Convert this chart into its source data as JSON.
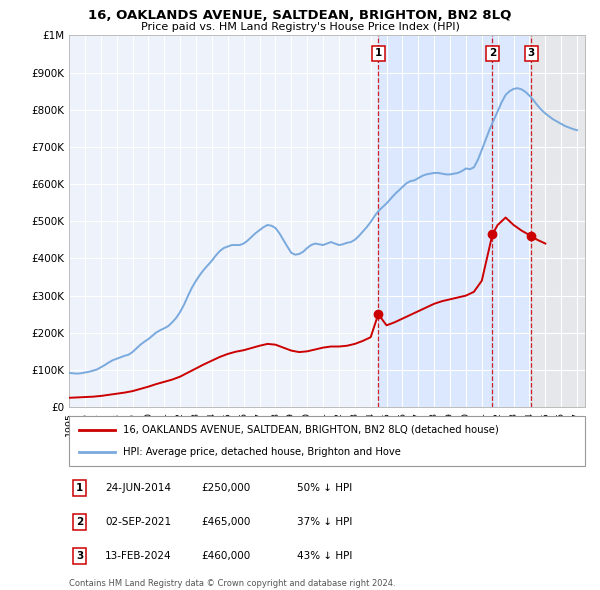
{
  "title": "16, OAKLANDS AVENUE, SALTDEAN, BRIGHTON, BN2 8LQ",
  "subtitle": "Price paid vs. HM Land Registry's House Price Index (HPI)",
  "xlim_start": 1995.0,
  "xlim_end": 2027.5,
  "ylim_min": 0,
  "ylim_max": 1000000,
  "background_color": "#ffffff",
  "plot_bg_color": "#eef2fb",
  "grid_color": "#ffffff",
  "hpi_color": "#7aaadd",
  "price_color": "#cc0000",
  "vline_color": "#cc0000",
  "transactions": [
    {
      "label": "1",
      "date_str": "24-JUN-2014",
      "year": 2014.48,
      "price": 250000,
      "pct": "50%",
      "dir": "↓"
    },
    {
      "label": "2",
      "date_str": "02-SEP-2021",
      "year": 2021.67,
      "price": 465000,
      "pct": "37%",
      "dir": "↓"
    },
    {
      "label": "3",
      "date_str": "13-FEB-2024",
      "year": 2024.12,
      "price": 460000,
      "pct": "43%",
      "dir": "↓"
    }
  ],
  "legend_line1": "16, OAKLANDS AVENUE, SALTDEAN, BRIGHTON, BN2 8LQ (detached house)",
  "legend_line2": "HPI: Average price, detached house, Brighton and Hove",
  "footnote": "Contains HM Land Registry data © Crown copyright and database right 2024.\nThis data is licensed under the Open Government Licence v3.0.",
  "hpi_data": {
    "years": [
      1995.0,
      1995.25,
      1995.5,
      1995.75,
      1996.0,
      1996.25,
      1996.5,
      1996.75,
      1997.0,
      1997.25,
      1997.5,
      1997.75,
      1998.0,
      1998.25,
      1998.5,
      1998.75,
      1999.0,
      1999.25,
      1999.5,
      1999.75,
      2000.0,
      2000.25,
      2000.5,
      2000.75,
      2001.0,
      2001.25,
      2001.5,
      2001.75,
      2002.0,
      2002.25,
      2002.5,
      2002.75,
      2003.0,
      2003.25,
      2003.5,
      2003.75,
      2004.0,
      2004.25,
      2004.5,
      2004.75,
      2005.0,
      2005.25,
      2005.5,
      2005.75,
      2006.0,
      2006.25,
      2006.5,
      2006.75,
      2007.0,
      2007.25,
      2007.5,
      2007.75,
      2008.0,
      2008.25,
      2008.5,
      2008.75,
      2009.0,
      2009.25,
      2009.5,
      2009.75,
      2010.0,
      2010.25,
      2010.5,
      2010.75,
      2011.0,
      2011.25,
      2011.5,
      2011.75,
      2012.0,
      2012.25,
      2012.5,
      2012.75,
      2013.0,
      2013.25,
      2013.5,
      2013.75,
      2014.0,
      2014.25,
      2014.5,
      2014.75,
      2015.0,
      2015.25,
      2015.5,
      2015.75,
      2016.0,
      2016.25,
      2016.5,
      2016.75,
      2017.0,
      2017.25,
      2017.5,
      2017.75,
      2018.0,
      2018.25,
      2018.5,
      2018.75,
      2019.0,
      2019.25,
      2019.5,
      2019.75,
      2020.0,
      2020.25,
      2020.5,
      2020.75,
      2021.0,
      2021.25,
      2021.5,
      2021.75,
      2022.0,
      2022.25,
      2022.5,
      2022.75,
      2023.0,
      2023.25,
      2023.5,
      2023.75,
      2024.0,
      2024.25,
      2024.5,
      2024.75,
      2025.0,
      2025.25,
      2025.5,
      2025.75,
      2026.0,
      2026.25,
      2026.5,
      2026.75,
      2027.0
    ],
    "values": [
      92000,
      91000,
      90000,
      91000,
      93000,
      95000,
      98000,
      101000,
      107000,
      113000,
      120000,
      126000,
      130000,
      134000,
      138000,
      141000,
      148000,
      158000,
      168000,
      176000,
      183000,
      192000,
      201000,
      207000,
      212000,
      218000,
      228000,
      240000,
      256000,
      276000,
      300000,
      322000,
      340000,
      356000,
      370000,
      382000,
      394000,
      408000,
      420000,
      428000,
      432000,
      436000,
      436000,
      436000,
      440000,
      448000,
      458000,
      468000,
      476000,
      484000,
      490000,
      488000,
      482000,
      468000,
      450000,
      432000,
      415000,
      410000,
      412000,
      418000,
      428000,
      436000,
      440000,
      438000,
      436000,
      440000,
      444000,
      440000,
      436000,
      438000,
      442000,
      444000,
      450000,
      460000,
      472000,
      484000,
      498000,
      514000,
      528000,
      538000,
      548000,
      560000,
      572000,
      582000,
      592000,
      602000,
      608000,
      610000,
      616000,
      622000,
      626000,
      628000,
      630000,
      630000,
      628000,
      626000,
      626000,
      628000,
      630000,
      635000,
      642000,
      640000,
      645000,
      665000,
      692000,
      720000,
      748000,
      772000,
      796000,
      820000,
      840000,
      850000,
      856000,
      858000,
      855000,
      848000,
      838000,
      826000,
      812000,
      800000,
      790000,
      782000,
      774000,
      768000,
      762000,
      756000,
      752000,
      748000,
      745000
    ]
  },
  "price_data": {
    "years": [
      1995.0,
      1995.5,
      1996.0,
      1996.5,
      1997.0,
      1997.5,
      1998.0,
      1998.5,
      1999.0,
      1999.5,
      2000.0,
      2000.5,
      2001.0,
      2001.5,
      2002.0,
      2002.5,
      2003.0,
      2003.5,
      2004.0,
      2004.5,
      2005.0,
      2005.5,
      2006.0,
      2006.5,
      2007.0,
      2007.5,
      2008.0,
      2008.5,
      2009.0,
      2009.5,
      2010.0,
      2010.5,
      2011.0,
      2011.5,
      2012.0,
      2012.5,
      2013.0,
      2013.5,
      2014.0,
      2014.48,
      2015.0,
      2015.5,
      2016.0,
      2016.5,
      2017.0,
      2017.5,
      2018.0,
      2018.5,
      2019.0,
      2019.5,
      2020.0,
      2020.5,
      2021.0,
      2021.67,
      2022.0,
      2022.5,
      2023.0,
      2023.5,
      2024.12,
      2024.5,
      2025.0
    ],
    "values": [
      25000,
      26000,
      27000,
      28000,
      30000,
      33000,
      36000,
      39000,
      43000,
      49000,
      55000,
      62000,
      68000,
      74000,
      82000,
      93000,
      104000,
      115000,
      125000,
      135000,
      143000,
      149000,
      153000,
      159000,
      165000,
      170000,
      168000,
      160000,
      152000,
      148000,
      150000,
      155000,
      160000,
      163000,
      163000,
      165000,
      170000,
      178000,
      188000,
      250000,
      220000,
      228000,
      238000,
      248000,
      258000,
      268000,
      278000,
      285000,
      290000,
      295000,
      300000,
      310000,
      340000,
      465000,
      490000,
      510000,
      490000,
      475000,
      460000,
      450000,
      440000
    ]
  },
  "shaded_regions": [
    {
      "x_start": 2014.48,
      "x_end": 2021.67,
      "color": "#cce0ff",
      "alpha": 0.55
    },
    {
      "x_start": 2021.67,
      "x_end": 2024.12,
      "color": "#cce0ff",
      "alpha": 0.55
    },
    {
      "x_start": 2024.12,
      "x_end": 2027.5,
      "color": "#e0e0e0",
      "alpha": 0.6
    }
  ],
  "yticks": [
    0,
    100000,
    200000,
    300000,
    400000,
    500000,
    600000,
    700000,
    800000,
    900000,
    1000000
  ],
  "ytick_labels": [
    "£0",
    "£100K",
    "£200K",
    "£300K",
    "£400K",
    "£500K",
    "£600K",
    "£700K",
    "£800K",
    "£900K",
    "£1M"
  ],
  "xticks": [
    1995,
    1996,
    1997,
    1998,
    1999,
    2000,
    2001,
    2002,
    2003,
    2004,
    2005,
    2006,
    2007,
    2008,
    2009,
    2010,
    2011,
    2012,
    2013,
    2014,
    2015,
    2016,
    2017,
    2018,
    2019,
    2020,
    2021,
    2022,
    2023,
    2024,
    2025,
    2026,
    2027
  ]
}
